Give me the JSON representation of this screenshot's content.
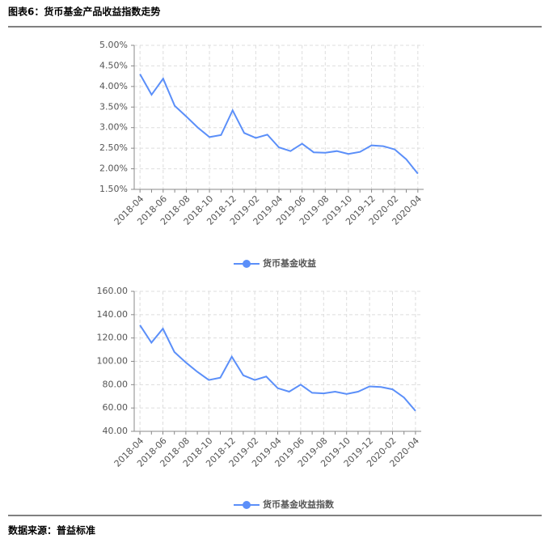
{
  "header": {
    "title": "图表6：货币基金产品收益指数走势"
  },
  "chart_data": [
    {
      "type": "line",
      "categories": [
        "2018-04",
        null,
        "2018-06",
        null,
        "2018-08",
        null,
        "2018-10",
        null,
        "2018-12",
        null,
        "2019-02",
        null,
        "2019-04",
        null,
        "2019-06",
        null,
        "2019-08",
        null,
        "2019-10",
        null,
        "2019-12",
        null,
        "2020-02",
        null,
        "2020-04"
      ],
      "series": [
        {
          "name": "货币基金收益",
          "color": "#5b8ff9",
          "values": [
            4.3,
            3.8,
            4.19,
            3.53,
            3.27,
            3.0,
            2.77,
            2.82,
            3.42,
            2.87,
            2.75,
            2.83,
            2.52,
            2.43,
            2.61,
            2.4,
            2.39,
            2.43,
            2.36,
            2.41,
            2.57,
            2.55,
            2.47,
            2.23,
            1.88
          ]
        }
      ],
      "ylim": [
        1.5,
        5
      ],
      "yticks": [
        {
          "value": 1.5,
          "label": "1.50%"
        },
        {
          "value": 2,
          "label": "2.00%"
        },
        {
          "value": 2.5,
          "label": "2.50%"
        },
        {
          "value": 3,
          "label": "3.00%"
        },
        {
          "value": 3.5,
          "label": "3.50%"
        },
        {
          "value": 4,
          "label": "4.00%"
        },
        {
          "value": 4.5,
          "label": "4.50%"
        },
        {
          "value": 5,
          "label": "5.00%"
        }
      ],
      "grid": true,
      "legend": "bottom"
    },
    {
      "type": "line",
      "categories": [
        "2018-04",
        null,
        "2018-06",
        null,
        "2018-08",
        null,
        "2018-10",
        null,
        "2018-12",
        null,
        "2019-02",
        null,
        "2019-04",
        null,
        "2019-06",
        null,
        "2019-08",
        null,
        "2019-10",
        null,
        "2019-12",
        null,
        "2020-02",
        null,
        "2020-04"
      ],
      "series": [
        {
          "name": "货币基金收益指数",
          "color": "#5b8ff9",
          "values": [
            131,
            116,
            128,
            108,
            99,
            91,
            84,
            86,
            104,
            88,
            84,
            87,
            77,
            74,
            80,
            73,
            72.5,
            74,
            72,
            74,
            78.5,
            78,
            76,
            69,
            57.5
          ]
        }
      ],
      "ylim": [
        40,
        160
      ],
      "yticks": [
        {
          "value": 40,
          "label": "40.00"
        },
        {
          "value": 60,
          "label": "60.00"
        },
        {
          "value": 80,
          "label": "80.00"
        },
        {
          "value": 100,
          "label": "100.00"
        },
        {
          "value": 120,
          "label": "120.00"
        },
        {
          "value": 140,
          "label": "140.00"
        },
        {
          "value": 160,
          "label": "160.00"
        }
      ],
      "grid": true,
      "legend": "bottom"
    }
  ],
  "footer": {
    "source": "数据来源：普益标准"
  }
}
